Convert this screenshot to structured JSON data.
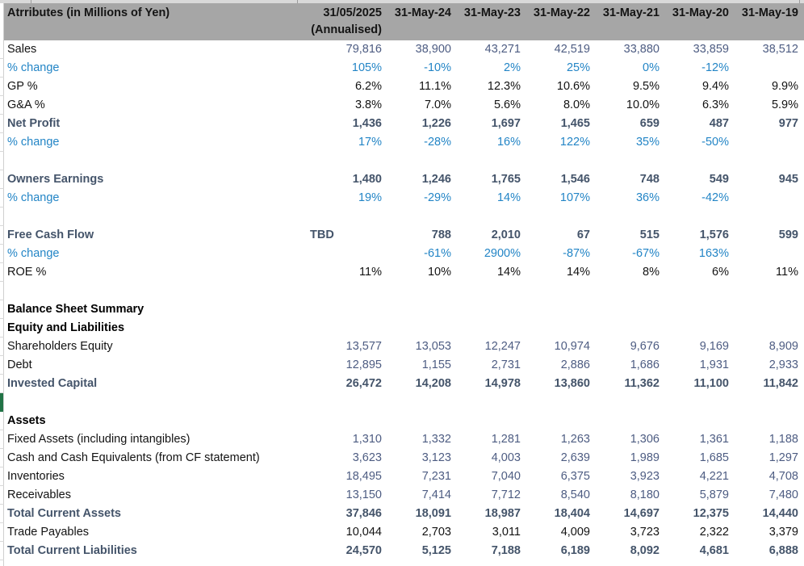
{
  "colors": {
    "hdr": "#a6a6a6",
    "navy": "#4d5c82",
    "blue": "#2385c6",
    "slate": "#44546a",
    "black": "#131313",
    "green": "#217346",
    "grid": "#cfcfcf",
    "topstrip": "#d9d9d9"
  },
  "header": {
    "title": "Atrributes (in Millions of Yen)",
    "col2025": {
      "line1": "31/05/2025",
      "line2": "(Annualised)"
    },
    "dates": [
      "31-May-24",
      "31-May-23",
      "31-May-22",
      "31-May-21",
      "31-May-20",
      "31-May-19"
    ]
  },
  "table": {
    "rows": [
      {
        "type": "input",
        "label": "Sales",
        "values": [
          "79,816",
          "38,900",
          "43,271",
          "42,519",
          "33,880",
          "33,859",
          "38,512"
        ]
      },
      {
        "type": "pct",
        "label": "% change",
        "values": [
          "105%",
          "-10%",
          "2%",
          "25%",
          "0%",
          "-12%",
          ""
        ]
      },
      {
        "type": "calc",
        "label": "GP %",
        "values": [
          "6.2%",
          "11.1%",
          "12.3%",
          "10.6%",
          "9.5%",
          "9.4%",
          "9.9%"
        ]
      },
      {
        "type": "calc",
        "label": "G&A %",
        "values": [
          "3.8%",
          "7.0%",
          "5.6%",
          "8.0%",
          "10.0%",
          "6.3%",
          "5.9%"
        ]
      },
      {
        "type": "total",
        "label": "Net Profit",
        "values": [
          "1,436",
          "1,226",
          "1,697",
          "1,465",
          "659",
          "487",
          "977"
        ]
      },
      {
        "type": "pct",
        "label": "% change",
        "values": [
          "17%",
          "-28%",
          "16%",
          "122%",
          "35%",
          "-50%",
          ""
        ]
      },
      {
        "type": "blank",
        "label": "",
        "values": [
          "",
          "",
          "",
          "",
          "",
          "",
          ""
        ]
      },
      {
        "type": "total",
        "label": "Owners Earnings",
        "values": [
          "1,480",
          "1,246",
          "1,765",
          "1,546",
          "748",
          "549",
          "945"
        ]
      },
      {
        "type": "pct",
        "label": "% change",
        "values": [
          "19%",
          "-29%",
          "14%",
          "107%",
          "36%",
          "-42%",
          ""
        ]
      },
      {
        "type": "blank",
        "label": "",
        "values": [
          "",
          "",
          "",
          "",
          "",
          "",
          ""
        ]
      },
      {
        "type": "total",
        "label": "Free Cash Flow",
        "values": [
          "TBD",
          "788",
          "2,010",
          "67",
          "515",
          "1,576",
          "599"
        ]
      },
      {
        "type": "pct",
        "label": "% change",
        "values": [
          "",
          "-61%",
          "2900%",
          "-87%",
          "-67%",
          "163%",
          ""
        ]
      },
      {
        "type": "calc",
        "label": "ROE %",
        "values": [
          "11%",
          "10%",
          "14%",
          "14%",
          "8%",
          "6%",
          "11%"
        ]
      },
      {
        "type": "blank",
        "label": "",
        "values": [
          "",
          "",
          "",
          "",
          "",
          "",
          ""
        ]
      },
      {
        "type": "section",
        "label": "Balance Sheet Summary",
        "values": [
          "",
          "",
          "",
          "",
          "",
          "",
          ""
        ]
      },
      {
        "type": "section",
        "label": "Equity and Liabilities",
        "values": [
          "",
          "",
          "",
          "",
          "",
          "",
          ""
        ]
      },
      {
        "type": "input",
        "label": "Shareholders Equity",
        "values": [
          "13,577",
          "13,053",
          "12,247",
          "10,974",
          "9,676",
          "9,169",
          "8,909"
        ]
      },
      {
        "type": "input",
        "label": "Debt",
        "values": [
          "12,895",
          "1,155",
          "2,731",
          "2,886",
          "1,686",
          "1,931",
          "2,933"
        ]
      },
      {
        "type": "total",
        "label": "Invested Capital",
        "values": [
          "26,472",
          "14,208",
          "14,978",
          "13,860",
          "11,362",
          "11,100",
          "11,842"
        ]
      },
      {
        "type": "blank",
        "label": "",
        "values": [
          "",
          "",
          "",
          "",
          "",
          "",
          ""
        ]
      },
      {
        "type": "section",
        "label": "Assets",
        "values": [
          "",
          "",
          "",
          "",
          "",
          "",
          ""
        ]
      },
      {
        "type": "input",
        "label": "Fixed Assets (including intangibles)",
        "values": [
          "1,310",
          "1,332",
          "1,281",
          "1,263",
          "1,306",
          "1,361",
          "1,188"
        ]
      },
      {
        "type": "input",
        "label": "Cash and Cash Equivalents (from CF statement)",
        "values": [
          "3,623",
          "3,123",
          "4,003",
          "2,639",
          "1,989",
          "1,685",
          "1,297"
        ]
      },
      {
        "type": "input",
        "label": "Inventories",
        "values": [
          "18,495",
          "7,231",
          "7,040",
          "6,375",
          "3,923",
          "4,221",
          "4,708"
        ]
      },
      {
        "type": "input",
        "label": "Receivables",
        "values": [
          "13,150",
          "7,414",
          "7,712",
          "8,540",
          "8,180",
          "5,879",
          "7,480"
        ]
      },
      {
        "type": "total",
        "label": "Total Current Assets",
        "values": [
          "37,846",
          "18,091",
          "18,987",
          "18,404",
          "14,697",
          "12,375",
          "14,440"
        ]
      },
      {
        "type": "calc",
        "label": "Trade Payables",
        "values": [
          "10,044",
          "2,703",
          "3,011",
          "4,009",
          "3,723",
          "2,322",
          "3,379"
        ]
      },
      {
        "type": "total",
        "label": "Total Current Liabilities",
        "values": [
          "24,570",
          "5,125",
          "7,188",
          "6,189",
          "8,092",
          "4,681",
          "6,888"
        ]
      }
    ]
  }
}
